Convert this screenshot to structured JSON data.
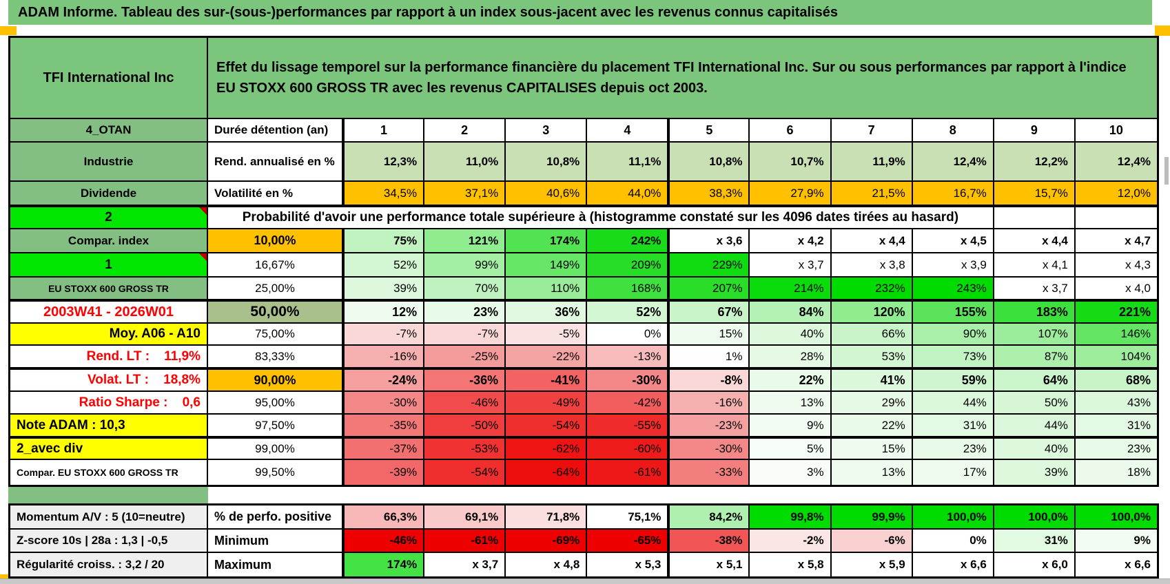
{
  "banner": {
    "title": "ADAM Informe. Tableau des sur-(sous-)performances par rapport à un index sous-jacent avec les revenus connus capitalisés"
  },
  "header": {
    "ticker": "TFI International Inc",
    "description": "Effet du lissage temporel sur la performance financière du placement TFI International Inc. Sur ou sous performances par rapport à l'indice EU STOXX 600 GROSS TR avec les revenus CAPITALISES depuis oct 2003."
  },
  "palette": {
    "banner_green": "#7CC57C",
    "label_green": "#83BE83",
    "bright_green": "#00E600",
    "pale_green": "#C9DFB4",
    "olive_green": "#A9C08C",
    "orange": "#FFC000",
    "yellow": "#FFFF00",
    "gray_label": "#EFEFEF",
    "heat_green_max": "#00DB00",
    "heat_red_max": "#EE0000",
    "red_text": "#FF0000",
    "marker_orange": "#FFC000"
  },
  "table": {
    "rows": [
      {
        "id": "duree",
        "label": {
          "t": "4_OTAN",
          "bg": "#83BE83",
          "cls": "ac b"
        },
        "param": {
          "t": "Durée détention (an)",
          "bg": "#FFFFFF",
          "cls": "b"
        },
        "cellcls": "ac b fs18",
        "cells": [
          [
            "1",
            "#FFFFFF"
          ],
          [
            "2",
            "#FFFFFF"
          ],
          [
            "3",
            "#FFFFFF"
          ],
          [
            "4",
            "#FFFFFF"
          ],
          [
            "5",
            "#FFFFFF"
          ],
          [
            "6",
            "#FFFFFF"
          ],
          [
            "7",
            "#FFFFFF"
          ],
          [
            "8",
            "#FFFFFF"
          ],
          [
            "9",
            "#FFFFFF"
          ],
          [
            "10",
            "#FFFFFF"
          ]
        ]
      },
      {
        "id": "rend",
        "label": {
          "t": "Industrie",
          "bg": "#83BE83",
          "cls": "ac b"
        },
        "param": {
          "t": "Rend. annualisé en %",
          "bg": "#FFFFFF",
          "cls": "b"
        },
        "cellcls": "ar b",
        "cells": [
          [
            "12,3%",
            "#C9DFB4"
          ],
          [
            "11,0%",
            "#C9DFB4"
          ],
          [
            "10,8%",
            "#C9DFB4"
          ],
          [
            "11,1%",
            "#C9DFB4"
          ],
          [
            "10,8%",
            "#C9DFB4"
          ],
          [
            "10,7%",
            "#C9DFB4"
          ],
          [
            "11,9%",
            "#C9DFB4"
          ],
          [
            "12,4%",
            "#C9DFB4"
          ],
          [
            "12,2%",
            "#C9DFB4"
          ],
          [
            "12,4%",
            "#C9DFB4"
          ]
        ]
      },
      {
        "id": "volat",
        "label": {
          "t": "Dividende",
          "bg": "#83BE83",
          "cls": "ac b"
        },
        "param": {
          "t": "Volatilité en %",
          "bg": "#FFFFFF",
          "cls": "b"
        },
        "cellcls": "ar",
        "cells": [
          [
            "34,5%",
            "#FFC000"
          ],
          [
            "37,1%",
            "#FFC000"
          ],
          [
            "40,6%",
            "#FFC000"
          ],
          [
            "44,0%",
            "#FFC000"
          ],
          [
            "38,3%",
            "#FFC000"
          ],
          [
            "27,9%",
            "#FFC000"
          ],
          [
            "21,5%",
            "#FFC000"
          ],
          [
            "16,7%",
            "#FFC000"
          ],
          [
            "15,7%",
            "#FFC000"
          ],
          [
            "12,0%",
            "#FFC000"
          ]
        ]
      },
      {
        "id": "proba",
        "label": {
          "t": "2",
          "bg": "#00E600",
          "cls": "ac b corner fs19"
        },
        "merged": {
          "t": "Probabilité d'avoir une performance totale supérieure à (histogramme constaté sur les 4096 dates tirées au hasard)"
        },
        "trail": [
          [
            "",
            "#FFFFFF"
          ],
          [
            "",
            "#FFFFFF"
          ]
        ]
      },
      {
        "id": "p10",
        "label": {
          "t": "Compar. index",
          "bg": "#83BE83",
          "cls": "ac b"
        },
        "param": {
          "t": "10,00%",
          "bg": "#FFC000",
          "cls": "ac b fs18"
        },
        "cellcls": "ar b",
        "cells": [
          [
            "75%",
            "#C1F3C1"
          ],
          [
            "121%",
            "#8FEC8F"
          ],
          [
            "174%",
            "#52E352"
          ],
          [
            "242%",
            "#19DB19"
          ],
          [
            "x 3,6",
            "#FFFFFF"
          ],
          [
            "x 4,2",
            "#FFFFFF"
          ],
          [
            "x 4,4",
            "#FFFFFF"
          ],
          [
            "x 4,5",
            "#FFFFFF"
          ],
          [
            "x 4,4",
            "#FFFFFF"
          ],
          [
            "x 4,7",
            "#FFFFFF"
          ]
        ]
      },
      {
        "id": "p1667",
        "label": {
          "t": "1",
          "bg": "#00E600",
          "cls": "ac b corner fs19"
        },
        "param": {
          "t": "16,67%",
          "bg": "#FFFFFF",
          "cls": "ac"
        },
        "cellcls": "ar",
        "cells": [
          [
            "52%",
            "#D3F6D3"
          ],
          [
            "99%",
            "#A5EFA5"
          ],
          [
            "149%",
            "#68E668"
          ],
          [
            "209%",
            "#27DD27"
          ],
          [
            "229%",
            "#10DB10"
          ],
          [
            "x 3,7",
            "#FFFFFF"
          ],
          [
            "x 3,8",
            "#FFFFFF"
          ],
          [
            "x 3,9",
            "#FFFFFF"
          ],
          [
            "x 4,1",
            "#FFFFFF"
          ],
          [
            "x 4,3",
            "#FFFFFF"
          ]
        ]
      },
      {
        "id": "p25",
        "label": {
          "t": "EU STOXX 600 GROSS TR",
          "bg": "#83BE83",
          "cls": "ac b sm"
        },
        "param": {
          "t": "25,00%",
          "bg": "#FFFFFF",
          "cls": "ac"
        },
        "cellcls": "ar",
        "cells": [
          [
            "39%",
            "#DDF8DD"
          ],
          [
            "70%",
            "#BFF2BF"
          ],
          [
            "110%",
            "#99ED99"
          ],
          [
            "168%",
            "#3FE03F"
          ],
          [
            "207%",
            "#29DD29"
          ],
          [
            "214%",
            "#0ADB0A"
          ],
          [
            "232%",
            "#00DB00"
          ],
          [
            "243%",
            "#00DB00"
          ],
          [
            "x 3,7",
            "#FFFFFF"
          ],
          [
            "x 4,0",
            "#FFFFFF"
          ]
        ]
      },
      {
        "id": "p50",
        "label": {
          "t": "2003W41 - 2026W01",
          "bg": "#FFFFFF",
          "cls": "ac b red fs20"
        },
        "param": {
          "t": "50,00%",
          "bg": "#A9C08C",
          "cls": "ac b fs21"
        },
        "cellcls": "ar b fs18",
        "cells": [
          [
            "12%",
            "#EFFBEF"
          ],
          [
            "23%",
            "#E8FAE8"
          ],
          [
            "36%",
            "#E1F9E1"
          ],
          [
            "52%",
            "#D3F6D3"
          ],
          [
            "67%",
            "#C9F4C9"
          ],
          [
            "84%",
            "#B4F1B4"
          ],
          [
            "120%",
            "#8FEC8F"
          ],
          [
            "155%",
            "#5BE45B"
          ],
          [
            "183%",
            "#3CE03C"
          ],
          [
            "221%",
            "#14DB14"
          ]
        ]
      },
      {
        "id": "p75",
        "label": {
          "t": "Moy. A06 - A10",
          "bg": "#FFFF00",
          "cls": "ar b fs19"
        },
        "param": {
          "t": "75,00%",
          "bg": "#FFFFFF",
          "cls": "ac"
        },
        "cellcls": "ar",
        "cells": [
          [
            "-7%",
            "#FAD8D8"
          ],
          [
            "-7%",
            "#FAD8D8"
          ],
          [
            "-5%",
            "#FBE2E2"
          ],
          [
            "0%",
            "#FFFFFF"
          ],
          [
            "15%",
            "#EEFBEE"
          ],
          [
            "40%",
            "#DDF8DD"
          ],
          [
            "66%",
            "#C9F4C9"
          ],
          [
            "90%",
            "#A9EFA9"
          ],
          [
            "107%",
            "#9BED9B"
          ],
          [
            "146%",
            "#63E563"
          ]
        ]
      },
      {
        "id": "p8333",
        "label": {
          "t": "Rend. LT :    11,9%",
          "bg": "#FFFFFF",
          "cls": "ar b red fs19"
        },
        "param": {
          "t": "83,33%",
          "bg": "#FFFFFF",
          "cls": "ac"
        },
        "cellcls": "ar",
        "cells": [
          [
            "-16%",
            "#F6B0B0"
          ],
          [
            "-25%",
            "#F49B9B"
          ],
          [
            "-22%",
            "#F5A4A4"
          ],
          [
            "-13%",
            "#F7BBBB"
          ],
          [
            "1%",
            "#FEFEFE"
          ],
          [
            "28%",
            "#E5F9E5"
          ],
          [
            "53%",
            "#D2F6D2"
          ],
          [
            "73%",
            "#C2F3C2"
          ],
          [
            "87%",
            "#ACF0AC"
          ],
          [
            "104%",
            "#9DED9D"
          ]
        ]
      },
      {
        "id": "p90",
        "label": {
          "t": "Volat. LT :    18,8%",
          "bg": "#FFFFFF",
          "cls": "ar b red fs19"
        },
        "param": {
          "t": "90,00%",
          "bg": "#FFC000",
          "cls": "ac b fs18"
        },
        "cellcls": "ar b fs18",
        "cells": [
          [
            "-24%",
            "#F59F9F"
          ],
          [
            "-36%",
            "#F37575"
          ],
          [
            "-41%",
            "#F26363"
          ],
          [
            "-30%",
            "#F48888"
          ],
          [
            "-8%",
            "#FAD8D8"
          ],
          [
            "22%",
            "#E9FAE9"
          ],
          [
            "41%",
            "#DCF8DC"
          ],
          [
            "59%",
            "#CFF5CF"
          ],
          [
            "64%",
            "#CBF5CB"
          ],
          [
            "68%",
            "#C8F4C8"
          ]
        ]
      },
      {
        "id": "p95",
        "label": {
          "t": "Ratio Sharpe :    0,6",
          "bg": "#FFFFFF",
          "cls": "ar b red fs19"
        },
        "param": {
          "t": "95,00%",
          "bg": "#FFFFFF",
          "cls": "ac"
        },
        "cellcls": "ar",
        "cells": [
          [
            "-30%",
            "#F48888"
          ],
          [
            "-46%",
            "#F14B4B"
          ],
          [
            "-49%",
            "#F14040"
          ],
          [
            "-42%",
            "#F25E5E"
          ],
          [
            "-16%",
            "#F6B0B0"
          ],
          [
            "13%",
            "#EFFBEF"
          ],
          [
            "29%",
            "#E5F9E5"
          ],
          [
            "44%",
            "#DBF7DB"
          ],
          [
            "50%",
            "#D6F6D6"
          ],
          [
            "43%",
            "#DBF7DB"
          ]
        ]
      },
      {
        "id": "p975",
        "label": {
          "t": "Note ADAM : 10,3",
          "bg": "#FFFF00",
          "cls": "b fs19"
        },
        "param": {
          "t": "97,50%",
          "bg": "#FFFFFF",
          "cls": "ac"
        },
        "cellcls": "ar",
        "cells": [
          [
            "-35%",
            "#F37878"
          ],
          [
            "-50%",
            "#F03D3D"
          ],
          [
            "-54%",
            "#EF2E2E"
          ],
          [
            "-55%",
            "#EF2B2B"
          ],
          [
            "-23%",
            "#F5A1A1"
          ],
          [
            "9%",
            "#F3FCF3"
          ],
          [
            "22%",
            "#E9FAE9"
          ],
          [
            "31%",
            "#E4F9E4"
          ],
          [
            "44%",
            "#DBF7DB"
          ],
          [
            "31%",
            "#E4F9E4"
          ]
        ]
      },
      {
        "id": "p99",
        "label": {
          "t": "2_avec div",
          "bg": "#FFFF00",
          "cls": "b fs19"
        },
        "param": {
          "t": "99,00%",
          "bg": "#FFFFFF",
          "cls": "ac"
        },
        "cellcls": "ar",
        "cells": [
          [
            "-37%",
            "#F37070"
          ],
          [
            "-53%",
            "#F03232"
          ],
          [
            "-62%",
            "#EE1414"
          ],
          [
            "-60%",
            "#EE1B1B"
          ],
          [
            "-30%",
            "#F48888"
          ],
          [
            "5%",
            "#F6FCF6"
          ],
          [
            "15%",
            "#EEFBEE"
          ],
          [
            "23%",
            "#E8FAE8"
          ],
          [
            "40%",
            "#DDF8DD"
          ],
          [
            "23%",
            "#E8FAE8"
          ]
        ]
      },
      {
        "id": "p995",
        "label": {
          "t": "Compar. EU STOXX 600 GROSS TR",
          "bg": "#FFFFFF",
          "cls": "b sm"
        },
        "param": {
          "t": "99,50%",
          "bg": "#FFFFFF",
          "cls": "ac"
        },
        "cellcls": "ar",
        "cells": [
          [
            "-39%",
            "#F26868"
          ],
          [
            "-54%",
            "#EF2E2E"
          ],
          [
            "-64%",
            "#EE0D0D"
          ],
          [
            "-61%",
            "#EE1818"
          ],
          [
            "-33%",
            "#F37E7E"
          ],
          [
            "3%",
            "#F8FDF8"
          ],
          [
            "13%",
            "#EFFBEF"
          ],
          [
            "17%",
            "#EDFAED"
          ],
          [
            "39%",
            "#DEF8DE"
          ],
          [
            "18%",
            "#ECFAEC"
          ]
        ]
      }
    ],
    "bottom_rows": [
      {
        "id": "perfo",
        "label": {
          "t": "Momentum A/V : 5 (10=neutre)",
          "bg": "#EFEFEF",
          "cls": "b"
        },
        "param": {
          "t": "% de perfo. positive",
          "bg": "#FFFFFF",
          "cls": "b fs18"
        },
        "cellcls": "ar b",
        "cells": [
          [
            "66,3%",
            "#F8B8B8"
          ],
          [
            "69,1%",
            "#FACACA"
          ],
          [
            "71,8%",
            "#FBDEDE"
          ],
          [
            "75,1%",
            "#FFFFFF"
          ],
          [
            "84,2%",
            "#AFF0AF"
          ],
          [
            "99,8%",
            "#00DB00"
          ],
          [
            "99,9%",
            "#00DB00"
          ],
          [
            "100,0%",
            "#00DB00"
          ],
          [
            "100,0%",
            "#00DB00"
          ],
          [
            "100,0%",
            "#00DB00"
          ]
        ]
      },
      {
        "id": "min",
        "label": {
          "t": "Z-score 10s | 28a : 1,3 | -0,5",
          "bg": "#EFEFEF",
          "cls": "b"
        },
        "param": {
          "t": "Minimum",
          "bg": "#FFFFFF",
          "cls": "b fs18"
        },
        "cellcls": "ar b",
        "cells": [
          [
            "-46%",
            "#EE0000"
          ],
          [
            "-61%",
            "#EE0000"
          ],
          [
            "-69%",
            "#EE0000"
          ],
          [
            "-65%",
            "#EE0000"
          ],
          [
            "-38%",
            "#F15555"
          ],
          [
            "-2%",
            "#FBE6E6"
          ],
          [
            "-6%",
            "#F9D0D0"
          ],
          [
            "0%",
            "#FFFFFF"
          ],
          [
            "31%",
            "#E2F9E2"
          ],
          [
            "9%",
            "#F2FCF2"
          ]
        ]
      },
      {
        "id": "max",
        "label": {
          "t": "Régularité croiss. : 3,2 / 20",
          "bg": "#EFEFEF",
          "cls": "b"
        },
        "param": {
          "t": "Maximum",
          "bg": "#FFFFFF",
          "cls": "b fs18"
        },
        "cellcls": "ar b",
        "cells": [
          [
            "174%",
            "#44E244"
          ],
          [
            "x 3,7",
            "#FFFFFF"
          ],
          [
            "x 4,8",
            "#FFFFFF"
          ],
          [
            "x 5,3",
            "#FFFFFF"
          ],
          [
            "x 5,1",
            "#FFFFFF"
          ],
          [
            "x 5,8",
            "#FFFFFF"
          ],
          [
            "x 5,9",
            "#FFFFFF"
          ],
          [
            "x 6,6",
            "#FFFFFF"
          ],
          [
            "x 6,0",
            "#FFFFFF"
          ],
          [
            "x 6,6",
            "#FFFFFF"
          ]
        ]
      }
    ]
  }
}
